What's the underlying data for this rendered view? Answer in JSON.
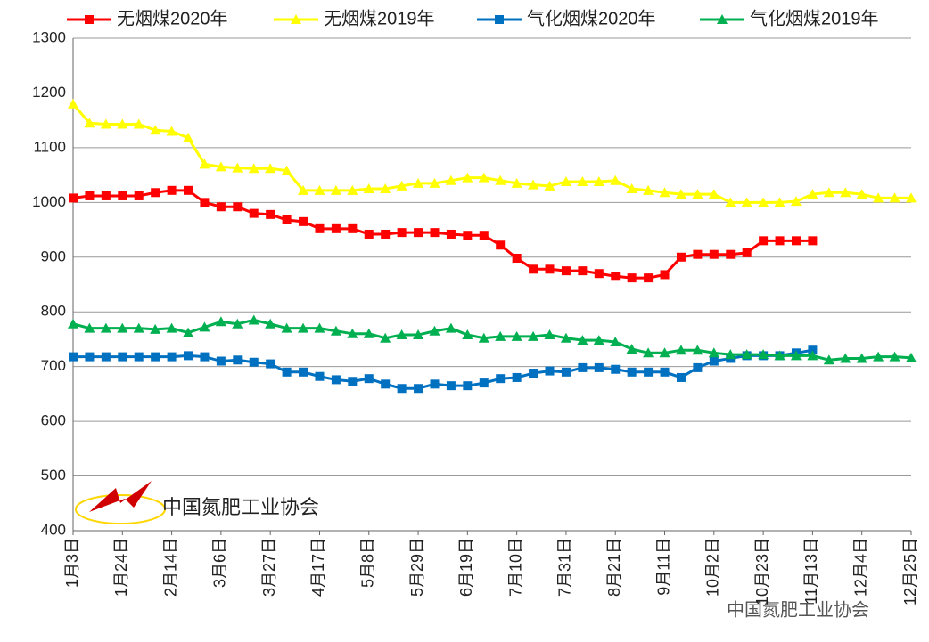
{
  "chart_data": {
    "type": "line",
    "categories": [
      "1月3日",
      null,
      null,
      "1月24日",
      null,
      null,
      "2月14日",
      null,
      null,
      "3月6日",
      null,
      null,
      "3月27日",
      null,
      null,
      "4月17日",
      null,
      null,
      "5月8日",
      null,
      null,
      "5月29日",
      null,
      null,
      "6月19日",
      null,
      null,
      "7月10日",
      null,
      null,
      "7月31日",
      null,
      null,
      "8月21日",
      null,
      null,
      "9月11日",
      null,
      null,
      "10月2日",
      null,
      null,
      "10月23日",
      null,
      null,
      "11月13日",
      null,
      null,
      "12月4日",
      null,
      null,
      "12月25日"
    ],
    "series": [
      {
        "name": "无烟煤2020年",
        "color": "#ff0000",
        "marker": "square",
        "values": [
          1008,
          1012,
          1012,
          1012,
          1012,
          1018,
          1022,
          1022,
          1000,
          992,
          992,
          980,
          978,
          968,
          965,
          952,
          952,
          952,
          942,
          942,
          945,
          945,
          945,
          942,
          940,
          940,
          922,
          898,
          878,
          878,
          875,
          875,
          870,
          865,
          862,
          862,
          868,
          900,
          905,
          905,
          905,
          908,
          930,
          930,
          930,
          930,
          null,
          null,
          null,
          null,
          null,
          null
        ]
      },
      {
        "name": "无烟煤2019年",
        "color": "#ffff00",
        "marker": "triangle",
        "values": [
          1180,
          1145,
          1143,
          1143,
          1143,
          1132,
          1130,
          1118,
          1070,
          1065,
          1063,
          1062,
          1062,
          1058,
          1022,
          1022,
          1022,
          1022,
          1025,
          1025,
          1030,
          1035,
          1035,
          1040,
          1045,
          1045,
          1040,
          1035,
          1032,
          1030,
          1038,
          1038,
          1038,
          1040,
          1025,
          1022,
          1018,
          1015,
          1015,
          1015,
          1000,
          1000,
          1000,
          1000,
          1002,
          1015,
          1018,
          1018,
          1015,
          1008,
          1008,
          1008
        ]
      },
      {
        "name": "气化烟煤2020年",
        "color": "#0070c0",
        "marker": "square",
        "values": [
          718,
          718,
          718,
          718,
          718,
          718,
          718,
          720,
          718,
          710,
          712,
          708,
          705,
          690,
          690,
          682,
          676,
          673,
          678,
          668,
          660,
          660,
          668,
          665,
          665,
          670,
          678,
          680,
          688,
          692,
          690,
          698,
          698,
          695,
          690,
          690,
          690,
          680,
          698,
          710,
          715,
          720,
          720,
          720,
          725,
          730,
          null,
          null,
          null,
          null,
          null,
          null
        ]
      },
      {
        "name": "气化烟煤2019年",
        "color": "#00b050",
        "marker": "triangle",
        "values": [
          778,
          770,
          770,
          770,
          770,
          768,
          770,
          762,
          772,
          782,
          778,
          785,
          778,
          770,
          770,
          770,
          765,
          760,
          760,
          752,
          758,
          758,
          765,
          770,
          758,
          752,
          755,
          755,
          755,
          758,
          752,
          748,
          748,
          745,
          732,
          725,
          725,
          730,
          730,
          725,
          722,
          722,
          722,
          720,
          720,
          720,
          712,
          715,
          715,
          718,
          718,
          716
        ]
      }
    ],
    "ylim": [
      400,
      1300
    ],
    "yticks": [
      400,
      500,
      600,
      700,
      800,
      900,
      1000,
      1100,
      1200,
      1300
    ],
    "grid": true,
    "annotation": "中国氮肥工业协会",
    "watermark": "中国氮肥工业协会"
  }
}
